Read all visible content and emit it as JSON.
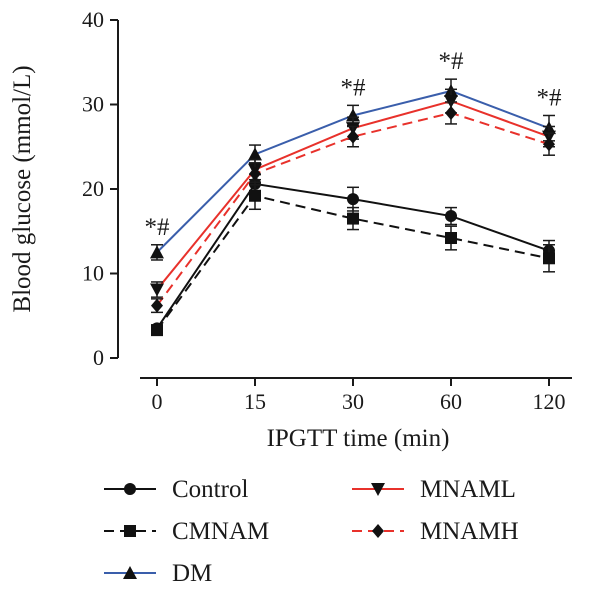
{
  "chart_data": {
    "type": "line",
    "xlabel": "IPGTT time (min)",
    "ylabel": "Blood glucose (mmol/L)",
    "categories": [
      "0",
      "15",
      "30",
      "60",
      "120"
    ],
    "ylim": [
      0,
      40
    ],
    "yticks": [
      0,
      10,
      20,
      30,
      40
    ],
    "grid": false,
    "legend_position": "bottom",
    "series": [
      {
        "name": "Control",
        "marker": "circle",
        "dash": "solid",
        "color": "#111111",
        "values": [
          3.5,
          20.6,
          18.8,
          16.8,
          12.7
        ],
        "errors": [
          0.4,
          1.1,
          1.4,
          1.0,
          1.2
        ]
      },
      {
        "name": "CMNAM",
        "marker": "square",
        "dash": "dashed",
        "color": "#111111",
        "values": [
          3.3,
          19.2,
          16.5,
          14.2,
          11.8
        ],
        "errors": [
          0.4,
          1.6,
          1.3,
          1.4,
          1.6
        ]
      },
      {
        "name": "DM",
        "marker": "triangle-up",
        "dash": "solid",
        "color": "#3a5eab",
        "values": [
          12.5,
          24.1,
          28.7,
          31.6,
          27.2
        ],
        "errors": [
          0.9,
          1.1,
          1.2,
          1.4,
          1.5
        ]
      },
      {
        "name": "MNAML",
        "marker": "triangle-down",
        "dash": "solid",
        "color": "#e8312b",
        "values": [
          8.1,
          22.3,
          27.2,
          30.4,
          26.2
        ],
        "errors": [
          0.9,
          1.2,
          1.3,
          1.4,
          1.2
        ]
      },
      {
        "name": "MNAMH",
        "marker": "diamond",
        "dash": "dashed",
        "color": "#e8312b",
        "values": [
          6.2,
          21.8,
          26.2,
          29.0,
          25.3
        ],
        "errors": [
          0.8,
          1.3,
          1.2,
          1.3,
          1.3
        ]
      }
    ],
    "annotations": [
      {
        "category": "0",
        "text": "*#"
      },
      {
        "category": "30",
        "text": "*#"
      },
      {
        "category": "60",
        "text": "*#"
      },
      {
        "category": "120",
        "text": "*#"
      }
    ]
  }
}
